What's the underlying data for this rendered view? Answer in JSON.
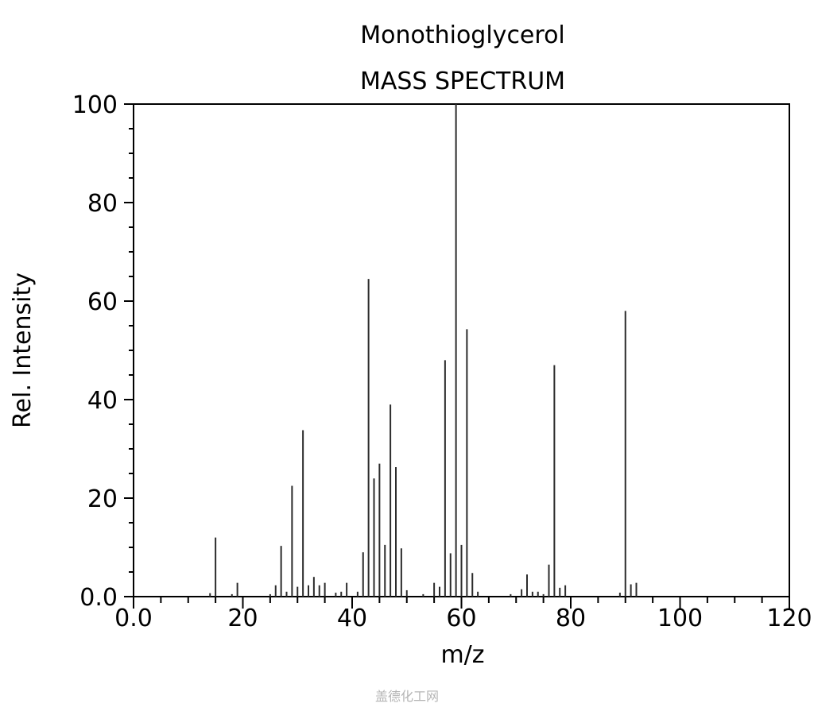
{
  "chart_data": {
    "type": "bar",
    "title": "Monothioglycerol",
    "subtitle": "MASS SPECTRUM",
    "xlabel": "m/z",
    "ylabel": "Rel. Intensity",
    "xlim": [
      0,
      120
    ],
    "ylim": [
      0,
      100
    ],
    "x_ticks": [
      0,
      20,
      40,
      60,
      80,
      100,
      120
    ],
    "x_tick_labels": [
      "0.0",
      "20",
      "40",
      "60",
      "80",
      "100",
      "120"
    ],
    "y_ticks": [
      0,
      20,
      40,
      60,
      80,
      100
    ],
    "y_tick_labels": [
      "0.0",
      "20",
      "40",
      "60",
      "80",
      "100"
    ],
    "x_minor_step": 5,
    "y_minor_step": 5,
    "grid": false,
    "legend": "none",
    "series": [
      {
        "x": [
          14,
          15,
          18,
          19,
          25,
          26,
          27,
          28,
          29,
          30,
          31,
          32,
          33,
          34,
          35,
          37,
          38,
          39,
          41,
          42,
          43,
          44,
          45,
          46,
          47,
          48,
          49,
          50,
          53,
          55,
          56,
          57,
          58,
          59,
          60,
          61,
          62,
          63,
          69,
          71,
          72,
          73,
          74,
          75,
          76,
          77,
          78,
          79,
          89,
          90,
          91,
          92
        ],
        "values": [
          0.7,
          12.0,
          0.5,
          2.8,
          0.5,
          2.3,
          10.3,
          1.0,
          22.5,
          2.0,
          33.8,
          2.3,
          4.0,
          2.3,
          2.8,
          0.8,
          1.0,
          2.8,
          1.0,
          9.0,
          64.5,
          24.0,
          27.0,
          10.5,
          39.0,
          26.3,
          9.8,
          1.3,
          0.5,
          2.8,
          2.0,
          48.0,
          8.8,
          100.0,
          10.5,
          54.3,
          4.8,
          1.0,
          0.5,
          1.5,
          4.5,
          1.0,
          1.0,
          0.5,
          6.5,
          47.0,
          1.8,
          2.3,
          0.8,
          58.0,
          2.5,
          2.8
        ]
      }
    ]
  },
  "watermark": "盖德化工网",
  "colors": {
    "bar": "#2b2b2b",
    "axis": "#000000",
    "watermark": "#b5b5b5"
  }
}
